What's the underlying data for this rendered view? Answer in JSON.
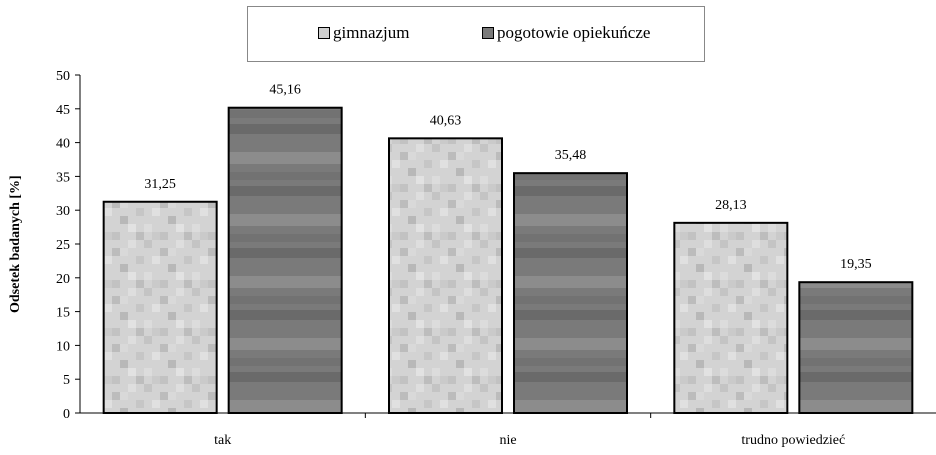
{
  "chart_data": {
    "type": "bar",
    "categories": [
      "tak",
      "nie",
      "trudno powiedzieć"
    ],
    "series": [
      {
        "name": "gimnazjum",
        "values": [
          31.25,
          40.63,
          28.13
        ],
        "labels": [
          "31,25",
          "40,63",
          "28,13"
        ]
      },
      {
        "name": "pogotowie opiekuńcze",
        "values": [
          45.16,
          35.48,
          19.35
        ],
        "labels": [
          "45,16",
          "35,48",
          "19,35"
        ]
      }
    ],
    "ylabel": "Odsetek badanych [%]",
    "xlabel": "",
    "ylim": [
      0,
      50
    ],
    "yticks": [
      0,
      5,
      10,
      15,
      20,
      25,
      30,
      35,
      40,
      45,
      50
    ],
    "grid": false,
    "legend_position": "top-center",
    "colors": {
      "gimnazjum": "#d0d0d0",
      "pogotowie opiekuńcze": "#7a7a7a",
      "bar_outline": "#000000",
      "axis": "#000000"
    }
  }
}
